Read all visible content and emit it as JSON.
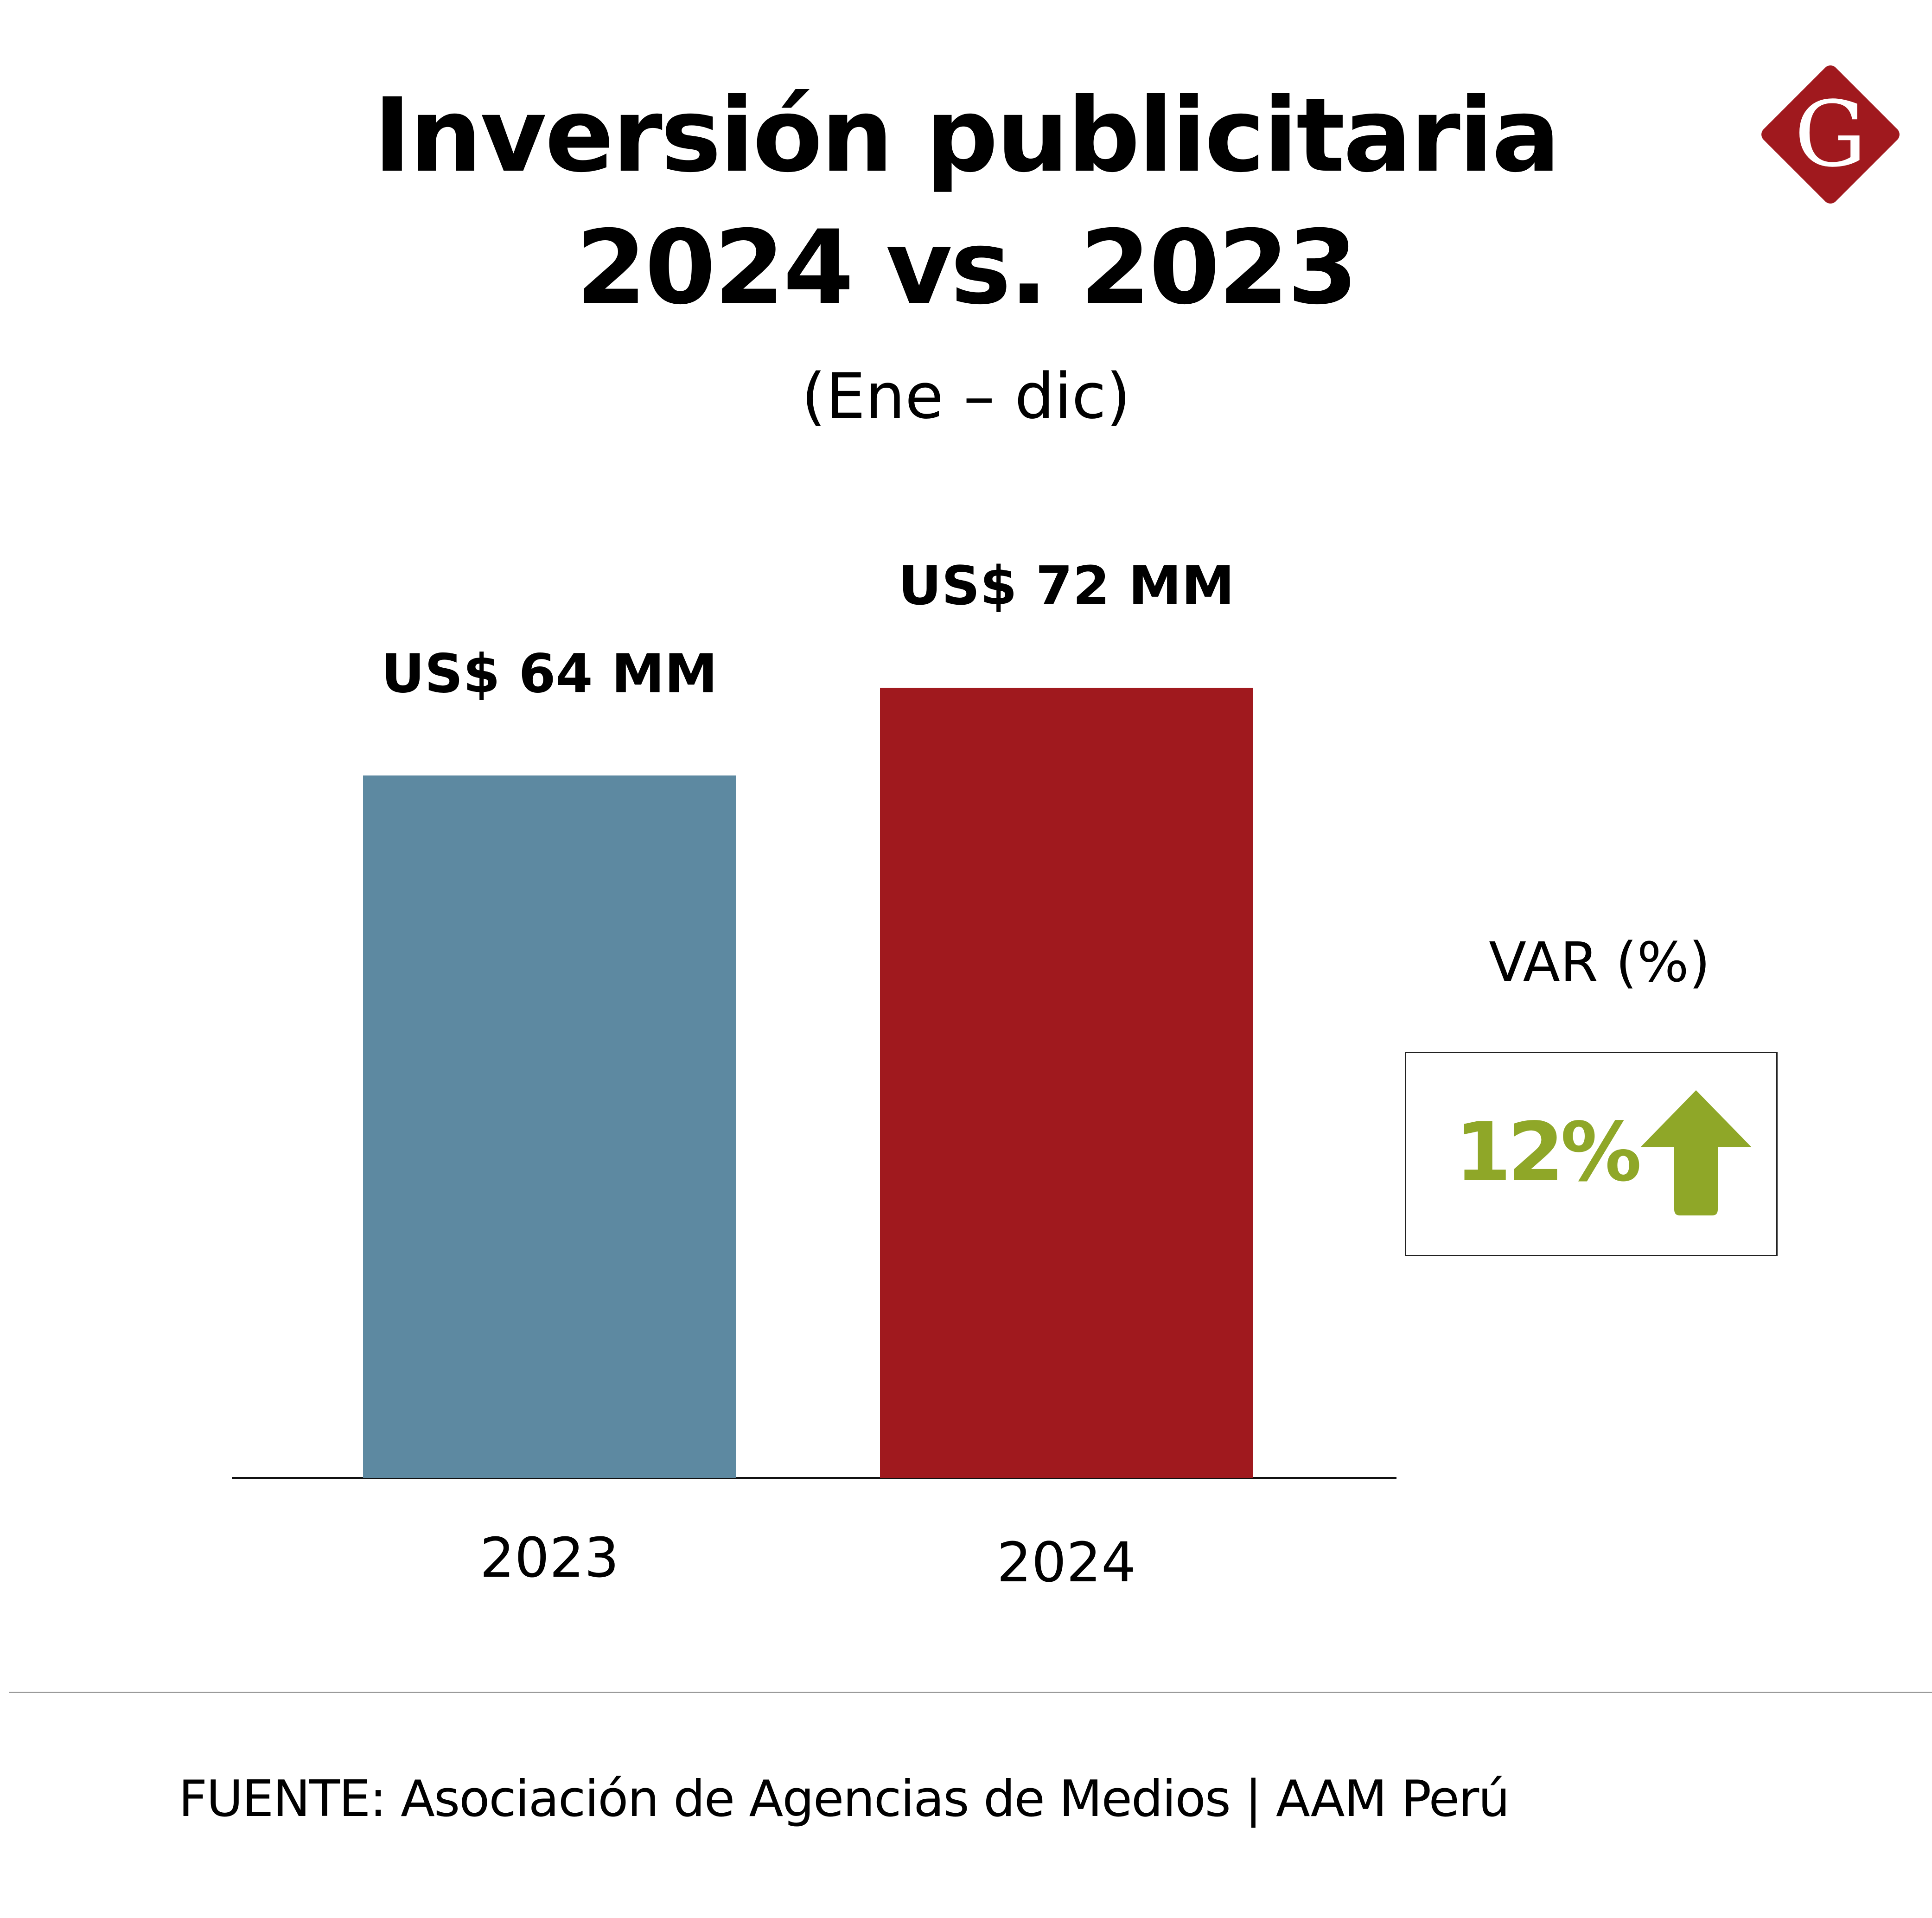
{
  "header": {
    "title_line1": "Inversión publicitaria",
    "title_line2": "2024 vs. 2023",
    "subtitle": "(Ene – dic)",
    "logo_text": "G"
  },
  "chart_data": {
    "type": "bar",
    "title": "Inversión publicitaria 2024 vs. 2023",
    "subtitle": "(Ene – dic)",
    "xlabel": "",
    "ylabel": "",
    "categories": [
      "2023",
      "2024"
    ],
    "values": [
      64,
      72
    ],
    "value_labels": [
      "US$ 64 MM",
      "US$ 72 MM"
    ],
    "units": "US$ MM",
    "ylim": [
      0,
      72
    ],
    "grid": false,
    "colors": [
      "#5d89a1",
      "#a0191e"
    ]
  },
  "variation": {
    "label": "VAR (%)",
    "value": "12%",
    "direction": "up",
    "color": "#8fa728"
  },
  "footer": {
    "source": "FUENTE: Asociación de Agencias de Medios | AAM Perú"
  },
  "colors": {
    "logo": "#a0191e",
    "arrow": "#8fa728"
  }
}
